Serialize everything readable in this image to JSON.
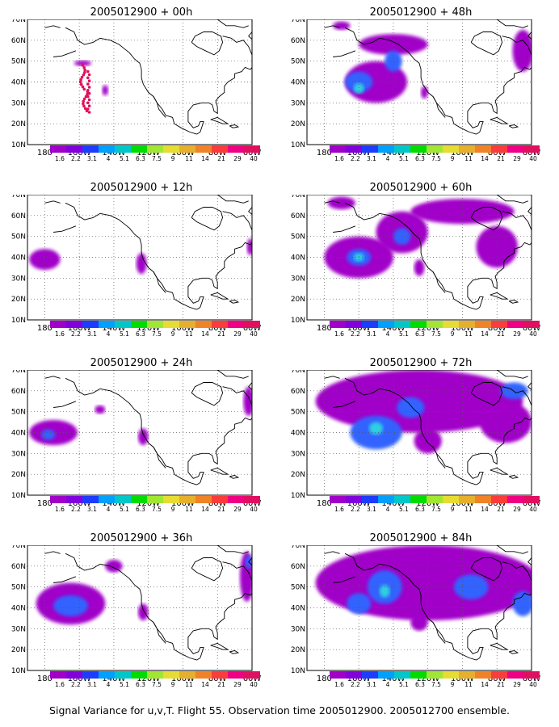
{
  "panels": [
    {
      "title": "2005012900 + 00h",
      "col": 0,
      "row": 0,
      "blobs": [
        {
          "lon": -158,
          "lat": 49,
          "rlon": 5,
          "rlat": 1.3,
          "level": 1
        },
        {
          "lon": -145,
          "lat": 36,
          "rlon": 1.8,
          "rlat": 2.5,
          "level": 1
        }
      ],
      "dots": true
    },
    {
      "title": "2005012900 + 48h",
      "col": 1,
      "row": 0,
      "blobs": [
        {
          "lon": -150,
          "lat": 40,
          "rlon": 18,
          "rlat": 10,
          "level": 1
        },
        {
          "lon": -160,
          "lat": 40,
          "rlon": 8,
          "rlat": 5,
          "level": 2
        },
        {
          "lon": -160,
          "lat": 37,
          "rlon": 3,
          "rlat": 2.5,
          "level": 3
        },
        {
          "lon": -140,
          "lat": 58,
          "rlon": 20,
          "rlat": 5,
          "level": 1
        },
        {
          "lon": -140,
          "lat": 50,
          "rlon": 5,
          "rlat": 5,
          "level": 2
        },
        {
          "lon": -170,
          "lat": 67,
          "rlon": 5,
          "rlat": 2,
          "level": 1
        },
        {
          "lon": -122,
          "lat": 35,
          "rlon": 2,
          "rlat": 3,
          "level": 1
        },
        {
          "lon": -65,
          "lat": 55,
          "rlon": 6,
          "rlat": 10,
          "level": 1
        }
      ],
      "dots": false
    },
    {
      "title": "2005012900 + 12h",
      "col": 0,
      "row": 1,
      "blobs": [
        {
          "lon": -180,
          "lat": 39,
          "rlon": 9,
          "rlat": 5,
          "level": 1
        },
        {
          "lon": -124,
          "lat": 37,
          "rlon": 3,
          "rlat": 5,
          "level": 1
        },
        {
          "lon": -61,
          "lat": 45,
          "rlon": 2,
          "rlat": 4,
          "level": 1
        }
      ],
      "dots": false
    },
    {
      "title": "2005012900 + 60h",
      "col": 1,
      "row": 1,
      "blobs": [
        {
          "lon": -160,
          "lat": 40,
          "rlon": 20,
          "rlat": 10,
          "level": 1
        },
        {
          "lon": -160,
          "lat": 40,
          "rlon": 7,
          "rlat": 4,
          "level": 2
        },
        {
          "lon": -160,
          "lat": 40,
          "rlon": 3,
          "rlat": 2,
          "level": 3
        },
        {
          "lon": -135,
          "lat": 52,
          "rlon": 15,
          "rlat": 10,
          "level": 1
        },
        {
          "lon": -135,
          "lat": 50,
          "rlon": 5,
          "rlat": 4,
          "level": 2
        },
        {
          "lon": -100,
          "lat": 62,
          "rlon": 30,
          "rlat": 6,
          "level": 1
        },
        {
          "lon": -80,
          "lat": 45,
          "rlon": 12,
          "rlat": 10,
          "level": 1
        },
        {
          "lon": -125,
          "lat": 35,
          "rlon": 3,
          "rlat": 4,
          "level": 1
        },
        {
          "lon": -170,
          "lat": 66,
          "rlon": 8,
          "rlat": 3,
          "level": 1
        }
      ],
      "dots": false
    },
    {
      "title": "2005012900 + 24h",
      "col": 0,
      "row": 2,
      "blobs": [
        {
          "lon": -175,
          "lat": 40,
          "rlon": 14,
          "rlat": 6,
          "level": 1
        },
        {
          "lon": -178,
          "lat": 39,
          "rlon": 4,
          "rlat": 2.5,
          "level": 2
        },
        {
          "lon": -148,
          "lat": 51,
          "rlon": 3,
          "rlat": 2,
          "level": 1
        },
        {
          "lon": -123,
          "lat": 38,
          "rlon": 3,
          "rlat": 4,
          "level": 1
        },
        {
          "lon": -62,
          "lat": 55,
          "rlon": 3,
          "rlat": 7,
          "level": 1
        }
      ],
      "dots": false
    },
    {
      "title": "2005012900 + 72h",
      "col": 1,
      "row": 2,
      "blobs": [
        {
          "lon": -125,
          "lat": 55,
          "rlon": 60,
          "rlat": 15,
          "level": 1
        },
        {
          "lon": -150,
          "lat": 40,
          "rlon": 15,
          "rlat": 8,
          "level": 2
        },
        {
          "lon": -150,
          "lat": 42,
          "rlon": 4,
          "rlat": 3,
          "level": 3
        },
        {
          "lon": -130,
          "lat": 52,
          "rlon": 8,
          "rlat": 5,
          "level": 2
        },
        {
          "lon": -120,
          "lat": 36,
          "rlon": 8,
          "rlat": 6,
          "level": 1
        },
        {
          "lon": -75,
          "lat": 45,
          "rlon": 15,
          "rlat": 10,
          "level": 1
        },
        {
          "lon": -70,
          "lat": 60,
          "rlon": 8,
          "rlat": 4,
          "level": 2
        }
      ],
      "dots": false
    },
    {
      "title": "2005012900 + 36h",
      "col": 0,
      "row": 3,
      "blobs": [
        {
          "lon": -165,
          "lat": 42,
          "rlon": 20,
          "rlat": 10,
          "level": 1
        },
        {
          "lon": -165,
          "lat": 41,
          "rlon": 10,
          "rlat": 5,
          "level": 2
        },
        {
          "lon": -140,
          "lat": 60,
          "rlon": 5,
          "rlat": 3,
          "level": 1
        },
        {
          "lon": -123,
          "lat": 38,
          "rlon": 3,
          "rlat": 4,
          "level": 1
        },
        {
          "lon": -63,
          "lat": 55,
          "rlon": 4,
          "rlat": 12,
          "level": 1
        },
        {
          "lon": -62,
          "lat": 62,
          "rlon": 2,
          "rlat": 3,
          "level": 2
        }
      ],
      "dots": false
    },
    {
      "title": "2005012900 + 84h",
      "col": 1,
      "row": 3,
      "blobs": [
        {
          "lon": -120,
          "lat": 52,
          "rlon": 65,
          "rlat": 18,
          "level": 1
        },
        {
          "lon": -145,
          "lat": 50,
          "rlon": 10,
          "rlat": 8,
          "level": 2
        },
        {
          "lon": -145,
          "lat": 48,
          "rlon": 3,
          "rlat": 3,
          "level": 3
        },
        {
          "lon": -160,
          "lat": 42,
          "rlon": 7,
          "rlat": 5,
          "level": 2
        },
        {
          "lon": -95,
          "lat": 50,
          "rlon": 10,
          "rlat": 6,
          "level": 2
        },
        {
          "lon": -65,
          "lat": 42,
          "rlon": 6,
          "rlat": 6,
          "level": 2
        },
        {
          "lon": -125,
          "lat": 33,
          "rlon": 5,
          "rlat": 4,
          "level": 1
        }
      ],
      "dots": false
    }
  ],
  "axes": {
    "lon_range": [
      -190,
      -60
    ],
    "lat_range": [
      10,
      70
    ],
    "lon_ticks": [
      "180",
      "160W",
      "140W",
      "120W",
      "100W",
      "80W",
      "60W"
    ],
    "lon_tick_values": [
      -180,
      -160,
      -140,
      -120,
      -100,
      -80,
      -60
    ],
    "lat_ticks": [
      "10N",
      "20N",
      "30N",
      "40N",
      "50N",
      "60N",
      "70N"
    ],
    "lat_tick_values": [
      10,
      20,
      30,
      40,
      50,
      60,
      70
    ]
  },
  "colorbar": {
    "labels": [
      "1.6",
      "2.2",
      "3.1",
      "4",
      "5.1",
      "6.3",
      "7.5",
      "9",
      "11",
      "14",
      "21",
      "29",
      "40"
    ],
    "colors": [
      "#a000c8",
      "#8200dc",
      "#1e3cff",
      "#00a0ff",
      "#00c8c8",
      "#00dc00",
      "#a0e632",
      "#e6dc32",
      "#e6af2d",
      "#f08228",
      "#fa3c3c",
      "#f00082",
      "#e01060"
    ]
  },
  "fill_colors": {
    "level1": "#a000c8",
    "level2": "#3264ff",
    "level3": "#2ed0e0"
  },
  "caption": "Signal Variance for u,v,T. Flight 55. Observation time 2005012900. 2005012700 ensemble."
}
